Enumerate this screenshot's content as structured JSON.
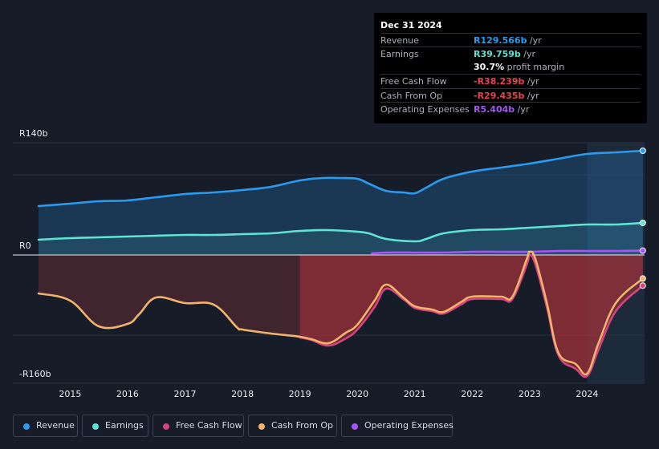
{
  "tooltip": {
    "date": "Dec 31 2024",
    "rows": [
      {
        "label": "Revenue",
        "value": "R129.566b",
        "unit": " /yr",
        "color": "#2a9bf0"
      },
      {
        "label": "Earnings",
        "value": "R39.759b",
        "unit": " /yr",
        "color": "#5fe3d3"
      },
      {
        "label": "",
        "value": "30.7%",
        "unit": " profit margin",
        "color": "#ffffff"
      },
      {
        "label": "Free Cash Flow",
        "value": "-R38.239b",
        "unit": " /yr",
        "color": "#e8434f"
      },
      {
        "label": "Cash From Op",
        "value": "-R29.435b",
        "unit": " /yr",
        "color": "#e8434f"
      },
      {
        "label": "Operating Expenses",
        "value": "R5.404b",
        "unit": " /yr",
        "color": "#a855f7"
      }
    ]
  },
  "legend": [
    {
      "label": "Revenue",
      "color": "#2a9bf0"
    },
    {
      "label": "Earnings",
      "color": "#5fe3d3"
    },
    {
      "label": "Free Cash Flow",
      "color": "#d6437f"
    },
    {
      "label": "Cash From Op",
      "color": "#f2b36b"
    },
    {
      "label": "Operating Expenses",
      "color": "#a855f7"
    }
  ],
  "chart_data": {
    "type": "area",
    "y_labels": {
      "top": "R140b",
      "zero": "R0",
      "bottom": "-R160b"
    },
    "ylim": [
      -160,
      140
    ],
    "xlim": [
      2014.45,
      2025.0
    ],
    "x_ticks": [
      "2015",
      "2016",
      "2017",
      "2018",
      "2019",
      "2020",
      "2021",
      "2022",
      "2023",
      "2024"
    ],
    "series": [
      {
        "name": "Revenue",
        "color": "#2a9bf0",
        "points": [
          [
            2014.45,
            61
          ],
          [
            2015.0,
            64
          ],
          [
            2015.5,
            67
          ],
          [
            2016.0,
            68
          ],
          [
            2016.5,
            72
          ],
          [
            2017.0,
            76
          ],
          [
            2017.5,
            78
          ],
          [
            2018.0,
            81
          ],
          [
            2018.5,
            85
          ],
          [
            2019.0,
            93
          ],
          [
            2019.4,
            96
          ],
          [
            2019.7,
            96
          ],
          [
            2020.0,
            95
          ],
          [
            2020.2,
            89
          ],
          [
            2020.5,
            80
          ],
          [
            2020.8,
            78
          ],
          [
            2021.0,
            77
          ],
          [
            2021.2,
            84
          ],
          [
            2021.5,
            95
          ],
          [
            2022.0,
            104
          ],
          [
            2022.5,
            109
          ],
          [
            2023.0,
            114
          ],
          [
            2023.5,
            120
          ],
          [
            2024.0,
            126
          ],
          [
            2024.5,
            128
          ],
          [
            2024.97,
            130
          ]
        ]
      },
      {
        "name": "Earnings",
        "color": "#5fe3d3",
        "points": [
          [
            2014.45,
            19
          ],
          [
            2015.0,
            21
          ],
          [
            2015.5,
            22
          ],
          [
            2016.0,
            23
          ],
          [
            2016.5,
            24
          ],
          [
            2017.0,
            25
          ],
          [
            2017.5,
            25
          ],
          [
            2018.0,
            26
          ],
          [
            2018.5,
            27
          ],
          [
            2019.0,
            30
          ],
          [
            2019.5,
            31
          ],
          [
            2020.0,
            29
          ],
          [
            2020.2,
            27
          ],
          [
            2020.5,
            20
          ],
          [
            2021.0,
            17
          ],
          [
            2021.2,
            20
          ],
          [
            2021.5,
            27
          ],
          [
            2022.0,
            31
          ],
          [
            2022.5,
            32
          ],
          [
            2023.0,
            34
          ],
          [
            2023.5,
            36
          ],
          [
            2024.0,
            38
          ],
          [
            2024.5,
            38
          ],
          [
            2024.97,
            40
          ]
        ]
      },
      {
        "name": "Operating Expenses",
        "color": "#a855f7",
        "points": [
          [
            2020.25,
            2
          ],
          [
            2020.5,
            3
          ],
          [
            2021.0,
            3
          ],
          [
            2021.5,
            3
          ],
          [
            2022.0,
            4
          ],
          [
            2022.5,
            4
          ],
          [
            2023.0,
            4
          ],
          [
            2023.5,
            5
          ],
          [
            2024.0,
            5
          ],
          [
            2024.5,
            5
          ],
          [
            2024.97,
            5.4
          ]
        ]
      },
      {
        "name": "Free Cash Flow",
        "color": "#d6437f",
        "points": [
          [
            2019.0,
            -103
          ],
          [
            2019.2,
            -106
          ],
          [
            2019.5,
            -113
          ],
          [
            2019.8,
            -104
          ],
          [
            2020.0,
            -93
          ],
          [
            2020.3,
            -65
          ],
          [
            2020.5,
            -42
          ],
          [
            2020.8,
            -55
          ],
          [
            2021.0,
            -66
          ],
          [
            2021.3,
            -70
          ],
          [
            2021.5,
            -73
          ],
          [
            2021.8,
            -62
          ],
          [
            2022.0,
            -55
          ],
          [
            2022.5,
            -55
          ],
          [
            2022.7,
            -55
          ],
          [
            2022.95,
            -12
          ],
          [
            2023.0,
            0
          ],
          [
            2023.1,
            -12
          ],
          [
            2023.3,
            -65
          ],
          [
            2023.5,
            -125
          ],
          [
            2023.8,
            -142
          ],
          [
            2024.0,
            -151
          ],
          [
            2024.2,
            -118
          ],
          [
            2024.5,
            -70
          ],
          [
            2024.97,
            -38.2
          ]
        ]
      },
      {
        "name": "Cash From Op",
        "color": "#f2b36b",
        "points": [
          [
            2014.45,
            -48
          ],
          [
            2015.0,
            -57
          ],
          [
            2015.5,
            -89
          ],
          [
            2016.0,
            -86
          ],
          [
            2016.2,
            -74
          ],
          [
            2016.5,
            -53
          ],
          [
            2017.0,
            -60
          ],
          [
            2017.5,
            -62
          ],
          [
            2017.9,
            -90
          ],
          [
            2018.0,
            -93
          ],
          [
            2018.5,
            -98
          ],
          [
            2019.0,
            -102
          ],
          [
            2019.2,
            -105
          ],
          [
            2019.5,
            -110
          ],
          [
            2019.8,
            -97
          ],
          [
            2020.0,
            -87
          ],
          [
            2020.3,
            -57
          ],
          [
            2020.5,
            -37
          ],
          [
            2020.8,
            -53
          ],
          [
            2021.0,
            -64
          ],
          [
            2021.3,
            -68
          ],
          [
            2021.5,
            -71
          ],
          [
            2021.8,
            -59
          ],
          [
            2022.0,
            -52
          ],
          [
            2022.5,
            -52
          ],
          [
            2022.7,
            -52
          ],
          [
            2022.95,
            -5
          ],
          [
            2023.0,
            4
          ],
          [
            2023.1,
            -5
          ],
          [
            2023.3,
            -60
          ],
          [
            2023.5,
            -122
          ],
          [
            2023.8,
            -136
          ],
          [
            2024.0,
            -148
          ],
          [
            2024.2,
            -110
          ],
          [
            2024.5,
            -60
          ],
          [
            2024.97,
            -29.4
          ]
        ]
      }
    ]
  }
}
